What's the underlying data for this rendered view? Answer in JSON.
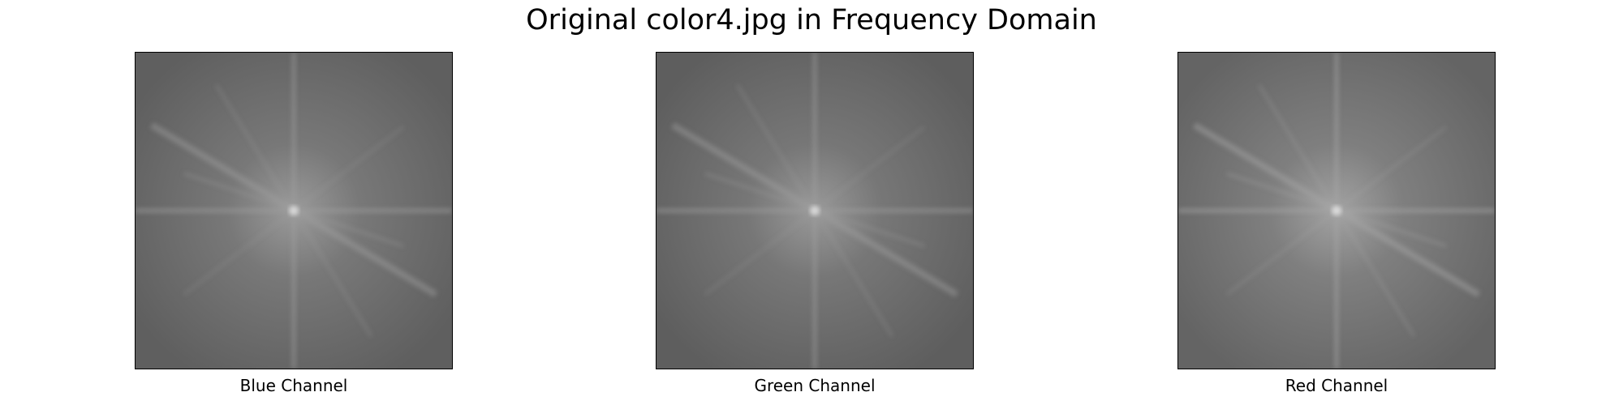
{
  "figure": {
    "title": "Original color4.jpg in Frequency Domain"
  },
  "panels": [
    {
      "label": "Blue Channel",
      "base_color": "#5f5f5f",
      "glow_color": "#8a8a8a"
    },
    {
      "label": "Green Channel",
      "base_color": "#5e5e5e",
      "glow_color": "#898989"
    },
    {
      "label": "Red Channel",
      "base_color": "#646464",
      "glow_color": "#909090"
    }
  ]
}
